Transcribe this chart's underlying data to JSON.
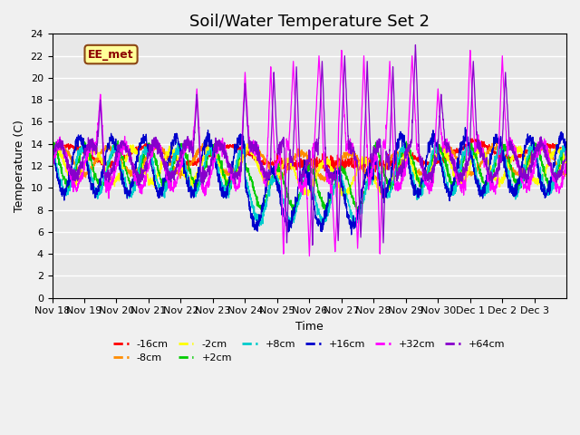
{
  "title": "Soil/Water Temperature Set 2",
  "xlabel": "Time",
  "ylabel": "Temperature (C)",
  "ylim": [
    0,
    24
  ],
  "yticks": [
    0,
    2,
    4,
    6,
    8,
    10,
    12,
    14,
    16,
    18,
    20,
    22,
    24
  ],
  "series": [
    {
      "label": "-16cm",
      "color": "#ff0000"
    },
    {
      "label": "-8cm",
      "color": "#ff8c00"
    },
    {
      "label": "-2cm",
      "color": "#ffff00"
    },
    {
      "label": "+2cm",
      "color": "#00cc00"
    },
    {
      "label": "+8cm",
      "color": "#00cccc"
    },
    {
      "label": "+16cm",
      "color": "#0000cc"
    },
    {
      "label": "+32cm",
      "color": "#ff00ff"
    },
    {
      "label": "+64cm",
      "color": "#8800cc"
    }
  ],
  "annotation_text": "EE_met",
  "plot_bg_color": "#e8e8e8",
  "grid_color": "#ffffff",
  "title_fontsize": 13,
  "tick_fontsize": 8,
  "label_fontsize": 9
}
